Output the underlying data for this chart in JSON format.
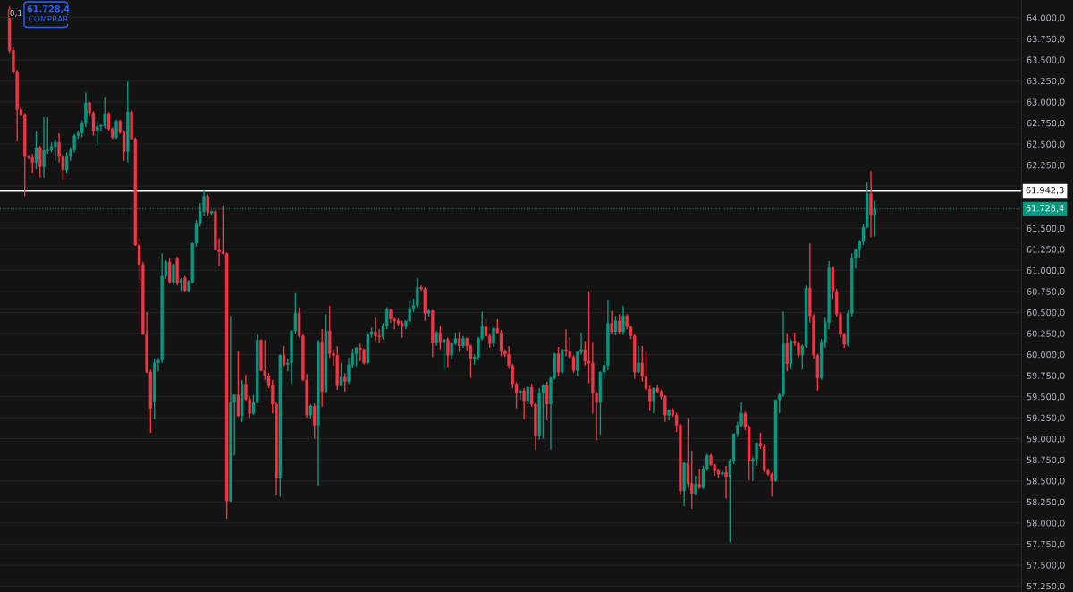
{
  "chart_data": {
    "type": "candlestick",
    "categories": [
      null,
      null,
      null,
      null,
      null,
      null,
      null,
      null,
      null,
      null,
      null,
      null,
      null,
      null,
      null,
      null,
      null,
      null,
      null,
      null,
      null,
      null,
      null,
      null,
      null,
      null,
      null,
      null,
      null,
      null,
      null,
      null,
      null,
      null,
      null,
      null,
      null,
      null,
      null,
      null,
      null,
      null,
      null,
      null,
      null,
      null,
      null,
      null,
      null,
      null,
      null,
      null,
      null,
      null,
      null,
      null,
      null,
      null,
      null,
      null,
      null,
      null,
      null,
      null,
      null,
      null,
      null,
      null,
      null,
      null,
      null,
      null,
      null,
      null,
      null,
      null,
      null,
      null,
      null,
      null,
      null,
      null,
      null,
      null,
      null,
      null,
      null,
      null,
      null,
      null,
      null,
      null,
      null,
      null,
      null,
      null,
      null,
      null,
      null,
      null,
      null,
      null,
      null,
      null,
      null,
      null,
      null,
      null,
      null,
      null,
      null,
      null,
      null,
      null,
      null,
      null,
      null,
      null,
      null,
      null,
      null,
      null,
      null,
      null,
      null,
      null,
      null,
      null,
      null,
      null,
      null,
      null,
      null,
      null,
      null,
      null,
      null,
      null,
      null,
      null,
      null,
      null,
      null,
      null,
      null,
      null,
      null,
      null,
      null,
      null,
      null,
      null,
      null,
      null,
      null,
      null,
      null,
      null,
      null,
      null,
      null,
      null,
      null,
      null,
      null,
      null,
      null,
      null,
      null,
      null,
      null,
      null,
      null,
      null,
      null,
      null,
      null,
      null,
      null,
      null,
      null,
      null,
      null,
      null,
      null,
      null,
      null,
      null,
      null,
      null,
      null,
      null,
      null,
      null,
      null,
      null,
      null,
      null,
      null,
      null,
      null,
      null,
      null,
      null,
      null,
      null,
      null,
      null,
      null,
      null,
      null,
      null,
      null,
      null,
      null,
      null,
      null,
      null,
      null,
      null,
      null,
      null,
      null,
      null,
      null,
      null,
      null,
      null,
      null,
      null,
      null,
      null,
      null,
      null,
      null,
      null,
      null,
      null,
      null,
      null,
      null,
      null,
      null,
      null,
      null,
      null,
      null,
      null,
      null,
      null,
      null,
      null,
      null,
      null,
      null,
      null,
      null,
      null,
      null,
      null,
      null,
      null,
      null,
      null,
      null,
      null,
      null,
      null
    ],
    "ohlc": [
      null,
      null,
      [
        64100,
        64130,
        63580,
        63610
      ],
      [
        63610,
        63650,
        63330,
        63360
      ],
      [
        63360,
        63380,
        62530,
        62910
      ],
      [
        62910,
        62940,
        62830,
        62840
      ],
      [
        62840,
        62870,
        61880,
        62350
      ],
      [
        62350,
        62370,
        62320,
        62340
      ],
      [
        62340,
        62380,
        62150,
        62280
      ],
      [
        62280,
        62650,
        62200,
        62460
      ],
      [
        62460,
        62480,
        62100,
        62230
      ],
      [
        62230,
        62820,
        62100,
        62420
      ],
      [
        62420,
        62820,
        62380,
        62430
      ],
      [
        62430,
        62520,
        62400,
        62470
      ],
      [
        62470,
        62550,
        62300,
        62520
      ],
      [
        62520,
        62630,
        62280,
        62350
      ],
      [
        62350,
        62380,
        62080,
        62190
      ],
      [
        62190,
        62400,
        62150,
        62350
      ],
      [
        62350,
        62460,
        62300,
        62430
      ],
      [
        62430,
        62620,
        62400,
        62600
      ],
      [
        62600,
        62660,
        62560,
        62630
      ],
      [
        62630,
        62780,
        62580,
        62750
      ],
      [
        62750,
        63110,
        62700,
        62990
      ],
      [
        62990,
        63000,
        62830,
        62870
      ],
      [
        62870,
        62890,
        62600,
        62650
      ],
      [
        62650,
        62770,
        62480,
        62710
      ],
      [
        62710,
        62730,
        62650,
        62720
      ],
      [
        62720,
        63050,
        62690,
        62860
      ],
      [
        62860,
        62880,
        62660,
        62680
      ],
      [
        62680,
        62700,
        62560,
        62580
      ],
      [
        62580,
        62790,
        62560,
        62770
      ],
      [
        62770,
        62790,
        62620,
        62640
      ],
      [
        62640,
        62660,
        62300,
        62410
      ],
      [
        62410,
        63240,
        62280,
        62880
      ],
      [
        62880,
        62900,
        62550,
        62560
      ],
      [
        62560,
        62580,
        61290,
        61300
      ],
      [
        61300,
        61380,
        60840,
        61070
      ],
      [
        61070,
        61100,
        60230,
        60240
      ],
      [
        60240,
        60500,
        59780,
        59790
      ],
      [
        59790,
        59820,
        59070,
        59360
      ],
      [
        59440,
        59950,
        59230,
        59900
      ],
      [
        59900,
        59960,
        59800,
        59930
      ],
      [
        59930,
        61200,
        59900,
        60930
      ],
      [
        60930,
        61120,
        60900,
        61100
      ],
      [
        61100,
        61150,
        60840,
        60860
      ],
      [
        60860,
        61080,
        60820,
        61070
      ],
      [
        61140,
        61160,
        60820,
        60850
      ],
      [
        60850,
        60910,
        60760,
        60890
      ],
      [
        60910,
        60930,
        60750,
        60760
      ],
      [
        60760,
        60880,
        60740,
        60870
      ],
      [
        60860,
        61330,
        60840,
        61320
      ],
      [
        61320,
        61600,
        61280,
        61560
      ],
      [
        61560,
        61800,
        61520,
        61700
      ],
      [
        61700,
        61950,
        61650,
        61880
      ],
      [
        61880,
        61900,
        61650,
        61680
      ],
      [
        61680,
        61710,
        61660,
        61700
      ],
      [
        61700,
        61720,
        61230,
        61240
      ],
      [
        61240,
        61380,
        61050,
        61220
      ],
      [
        61220,
        61770,
        61190,
        61200
      ],
      [
        61200,
        61210,
        58050,
        58260
      ],
      [
        58260,
        60460,
        58250,
        59430
      ],
      [
        59430,
        59520,
        58800,
        59520
      ],
      [
        59520,
        60040,
        59260,
        59270
      ],
      [
        59270,
        59700,
        59200,
        59650
      ],
      [
        59650,
        59760,
        59450,
        59470
      ],
      [
        59470,
        59500,
        59250,
        59300
      ],
      [
        59300,
        59520,
        59280,
        59430
      ],
      [
        59430,
        60240,
        59420,
        60170
      ],
      [
        60170,
        60180,
        59800,
        59810
      ],
      [
        59810,
        60170,
        59700,
        59750
      ],
      [
        59750,
        59780,
        59600,
        59630
      ],
      [
        59630,
        59700,
        59300,
        59410
      ],
      [
        59410,
        59430,
        58330,
        58530
      ],
      [
        58530,
        60000,
        58310,
        59990
      ],
      [
        59990,
        60100,
        59860,
        59880
      ],
      [
        59880,
        59950,
        59800,
        59900
      ],
      [
        59900,
        60290,
        59650,
        60280
      ],
      [
        60280,
        60730,
        60250,
        60490
      ],
      [
        60490,
        60560,
        60200,
        60220
      ],
      [
        60220,
        60240,
        59680,
        59700
      ],
      [
        59700,
        59770,
        59250,
        59280
      ],
      [
        59280,
        59410,
        59240,
        59390
      ],
      [
        59390,
        59420,
        59000,
        59160
      ],
      [
        59160,
        60170,
        58440,
        60150
      ],
      [
        60150,
        60300,
        59380,
        59560
      ],
      [
        59560,
        60480,
        59550,
        60280
      ],
      [
        60280,
        60580,
        59960,
        60010
      ],
      [
        60010,
        60060,
        59870,
        59990
      ],
      [
        59990,
        60100,
        59580,
        59630
      ],
      [
        59630,
        59900,
        59620,
        59730
      ],
      [
        59730,
        59780,
        59560,
        59680
      ],
      [
        59680,
        59960,
        59650,
        59880
      ],
      [
        59880,
        60070,
        59840,
        60010
      ],
      [
        60010,
        60090,
        59860,
        60080
      ],
      [
        60080,
        60130,
        59920,
        60060
      ],
      [
        60060,
        60070,
        59880,
        59900
      ],
      [
        59900,
        60280,
        59880,
        60240
      ],
      [
        60240,
        60320,
        60200,
        60270
      ],
      [
        60270,
        60440,
        60170,
        60220
      ],
      [
        60220,
        60300,
        60140,
        60210
      ],
      [
        60210,
        60370,
        60180,
        60340
      ],
      [
        60340,
        60560,
        60300,
        60530
      ],
      [
        60530,
        60540,
        60380,
        60420
      ],
      [
        60420,
        60440,
        60300,
        60400
      ],
      [
        60400,
        60430,
        60340,
        60370
      ],
      [
        60370,
        60400,
        60200,
        60330
      ],
      [
        60330,
        60400,
        60300,
        60400
      ],
      [
        60400,
        60630,
        60350,
        60550
      ],
      [
        60550,
        60660,
        60510,
        60580
      ],
      [
        60580,
        60910,
        60560,
        60800
      ],
      [
        60800,
        60820,
        60760,
        60780
      ],
      [
        60780,
        60800,
        60400,
        60490
      ],
      [
        60490,
        60540,
        60450,
        60520
      ],
      [
        60520,
        60530,
        59970,
        60140
      ],
      [
        60140,
        60280,
        60100,
        60260
      ],
      [
        60260,
        60340,
        60060,
        60150
      ],
      [
        60150,
        60190,
        59810,
        60180
      ],
      [
        60180,
        60200,
        59850,
        59990
      ],
      [
        59990,
        60150,
        59940,
        60130
      ],
      [
        60130,
        60260,
        60110,
        60190
      ],
      [
        60190,
        60270,
        60030,
        60100
      ],
      [
        60100,
        60220,
        60080,
        60190
      ],
      [
        60190,
        60200,
        60050,
        60100
      ],
      [
        60100,
        60120,
        59720,
        59950
      ],
      [
        59950,
        60000,
        59880,
        59970
      ],
      [
        59970,
        60210,
        59930,
        60190
      ],
      [
        60190,
        60510,
        60170,
        60330
      ],
      [
        60330,
        60420,
        60200,
        60220
      ],
      [
        60220,
        60250,
        60080,
        60130
      ],
      [
        60130,
        60320,
        60090,
        60310
      ],
      [
        60310,
        60420,
        60250,
        60260
      ],
      [
        60260,
        60290,
        59980,
        60040
      ],
      [
        60040,
        60060,
        59970,
        60000
      ],
      [
        60000,
        60100,
        59830,
        59870
      ],
      [
        59870,
        59890,
        59600,
        59650
      ],
      [
        59650,
        59670,
        59360,
        59540
      ],
      [
        59540,
        59580,
        59460,
        59570
      ],
      [
        59570,
        59600,
        59230,
        59450
      ],
      [
        59450,
        59620,
        59410,
        59610
      ],
      [
        59610,
        59650,
        59380,
        59410
      ],
      [
        59410,
        59420,
        58870,
        59030
      ],
      [
        59030,
        59600,
        58990,
        59540
      ],
      [
        59540,
        59650,
        59000,
        59630
      ],
      [
        59630,
        59680,
        59220,
        59410
      ],
      [
        59410,
        59740,
        58870,
        59720
      ],
      [
        59720,
        60020,
        59700,
        60010
      ],
      [
        60010,
        60090,
        59740,
        59790
      ],
      [
        59790,
        60070,
        59770,
        60060
      ],
      [
        60060,
        60300,
        59980,
        60040
      ],
      [
        60040,
        60200,
        59950,
        59970
      ],
      [
        59970,
        59990,
        59780,
        59810
      ],
      [
        59810,
        60040,
        59740,
        60030
      ],
      [
        60030,
        60260,
        60000,
        60060
      ],
      [
        60060,
        60160,
        59870,
        59920
      ],
      [
        59920,
        60750,
        59660,
        59900
      ],
      [
        59900,
        60150,
        59300,
        59540
      ],
      [
        59540,
        59560,
        58980,
        59430
      ],
      [
        59430,
        59800,
        59050,
        59790
      ],
      [
        59790,
        59920,
        59710,
        59870
      ],
      [
        59870,
        60640,
        59810,
        60370
      ],
      [
        60370,
        60520,
        60250,
        60270
      ],
      [
        60270,
        60460,
        60230,
        60400
      ],
      [
        60400,
        60480,
        60250,
        60270
      ],
      [
        60270,
        60580,
        60230,
        60460
      ],
      [
        60460,
        60480,
        60300,
        60330
      ],
      [
        60330,
        60340,
        60180,
        60220
      ],
      [
        60220,
        60240,
        59710,
        59790
      ],
      [
        59790,
        60100,
        59780,
        59900
      ],
      [
        59900,
        60100,
        59680,
        59740
      ],
      [
        59740,
        60030,
        59570,
        59590
      ],
      [
        59590,
        59630,
        59330,
        59450
      ],
      [
        59450,
        59610,
        59300,
        59600
      ],
      [
        59600,
        59640,
        59540,
        59560
      ],
      [
        59560,
        59580,
        59470,
        59500
      ],
      [
        59500,
        59520,
        59200,
        59280
      ],
      [
        59280,
        59350,
        59220,
        59340
      ],
      [
        59340,
        59360,
        59260,
        59280
      ],
      [
        59280,
        59310,
        59080,
        59160
      ],
      [
        59160,
        59180,
        58340,
        58380
      ],
      [
        58380,
        58720,
        58200,
        58710
      ],
      [
        58710,
        59250,
        58420,
        58470
      ],
      [
        58470,
        58860,
        58170,
        58350
      ],
      [
        58350,
        58560,
        58330,
        58460
      ],
      [
        58460,
        58640,
        58400,
        58420
      ],
      [
        58420,
        58680,
        58400,
        58640
      ],
      [
        58640,
        58820,
        58620,
        58800
      ],
      [
        58800,
        58820,
        58680,
        58690
      ],
      [
        58690,
        58700,
        58560,
        58620
      ],
      [
        58620,
        58640,
        58540,
        58580
      ],
      [
        58580,
        58620,
        58560,
        58600
      ],
      [
        58600,
        58680,
        58290,
        58550
      ],
      [
        58550,
        58760,
        57770,
        58730
      ],
      [
        58730,
        59060,
        58700,
        59060
      ],
      [
        59060,
        59200,
        59020,
        59160
      ],
      [
        59160,
        59430,
        59140,
        59300
      ],
      [
        59300,
        59320,
        59100,
        59140
      ],
      [
        59140,
        59160,
        58510,
        58730
      ],
      [
        58730,
        58780,
        58500,
        58760
      ],
      [
        58760,
        58960,
        58680,
        58950
      ],
      [
        58950,
        59070,
        58880,
        58910
      ],
      [
        58910,
        58930,
        58600,
        58620
      ],
      [
        58620,
        58640,
        58560,
        58580
      ],
      [
        58580,
        58600,
        58310,
        58500
      ],
      [
        58500,
        59460,
        58490,
        59460
      ],
      [
        59460,
        59540,
        59300,
        59520
      ],
      [
        59520,
        60510,
        59500,
        60130
      ],
      [
        60130,
        60250,
        59800,
        59890
      ],
      [
        59890,
        60180,
        59820,
        60160
      ],
      [
        60160,
        60260,
        60100,
        60140
      ],
      [
        60140,
        60160,
        59960,
        59990
      ],
      [
        59990,
        60120,
        59820,
        60100
      ],
      [
        60100,
        60820,
        60080,
        60790
      ],
      [
        60790,
        61320,
        60380,
        60460
      ],
      [
        60460,
        60480,
        59950,
        59990
      ],
      [
        59990,
        60010,
        59570,
        59720
      ],
      [
        59720,
        60180,
        59700,
        60150
      ],
      [
        60150,
        60440,
        60080,
        60380
      ],
      [
        60380,
        61110,
        60300,
        61030
      ],
      [
        61030,
        61040,
        60660,
        60750
      ],
      [
        60750,
        60780,
        60450,
        60480
      ],
      [
        60480,
        60500,
        60200,
        60240
      ],
      [
        60240,
        60260,
        60080,
        60120
      ],
      [
        60120,
        60520,
        60100,
        60490
      ],
      [
        60490,
        61200,
        60450,
        61150
      ],
      [
        61150,
        61260,
        61020,
        61240
      ],
      [
        61240,
        61360,
        61140,
        61340
      ],
      [
        61340,
        61550,
        61300,
        61510
      ],
      [
        61510,
        62050,
        61500,
        61910
      ],
      [
        61910,
        62180,
        61390,
        61660
      ],
      [
        61660,
        61820,
        61400,
        61728.4
      ],
      null,
      null,
      null,
      null,
      null,
      null,
      null,
      null,
      null,
      null,
      null,
      null,
      null,
      null,
      null,
      null,
      null,
      null,
      null,
      null,
      null,
      null,
      null,
      null,
      null,
      null,
      null,
      null,
      null,
      null,
      null,
      null,
      null,
      null,
      null,
      null,
      null,
      null
    ],
    "ylim": [
      57180,
      64210
    ],
    "yticks": [
      {
        "value": 57250,
        "label": "57.250,0"
      },
      {
        "value": 57500,
        "label": "57.500,0"
      },
      {
        "value": 57750,
        "label": "57.750,0"
      },
      {
        "value": 58000,
        "label": "58.000,0"
      },
      {
        "value": 58250,
        "label": "58.250,0"
      },
      {
        "value": 58500,
        "label": "58.500,0"
      },
      {
        "value": 58750,
        "label": "58.750,0"
      },
      {
        "value": 59000,
        "label": "59.000,0"
      },
      {
        "value": 59250,
        "label": "59.250,0"
      },
      {
        "value": 59500,
        "label": "59.500,0"
      },
      {
        "value": 59750,
        "label": "59.750,0"
      },
      {
        "value": 60000,
        "label": "60.000,0"
      },
      {
        "value": 60250,
        "label": "60.250,0"
      },
      {
        "value": 60500,
        "label": "60.500,0"
      },
      {
        "value": 60750,
        "label": "60.750,0"
      },
      {
        "value": 61000,
        "label": "61.000,0"
      },
      {
        "value": 61250,
        "label": "61.250,0"
      },
      {
        "value": 61500,
        "label": "61.500,0"
      },
      {
        "value": 61750,
        "label": null
      },
      {
        "value": 62000,
        "label": null
      },
      {
        "value": 62250,
        "label": "62.250,0"
      },
      {
        "value": 62500,
        "label": "62.500,0"
      },
      {
        "value": 62750,
        "label": "62.750,0"
      },
      {
        "value": 63000,
        "label": "63.000,0"
      },
      {
        "value": 63250,
        "label": "63.250,0"
      },
      {
        "value": 63500,
        "label": "63.500,0"
      },
      {
        "value": 63750,
        "label": "63.750,0"
      },
      {
        "value": 64000,
        "label": "64.000,0"
      }
    ],
    "ref_lines": [
      {
        "axis": "y",
        "value": 61942.3,
        "label": "61.942,3",
        "color": "#ffffff",
        "line_style": "solid"
      },
      {
        "axis": "y",
        "value": 61728.4,
        "label": "61.728,4",
        "color": "#089981",
        "line_style": "dotted"
      }
    ],
    "annotations": [
      "0,1",
      "61.728,4",
      "COMPRAR"
    ],
    "grid": "y",
    "tick_labels": "y"
  }
}
